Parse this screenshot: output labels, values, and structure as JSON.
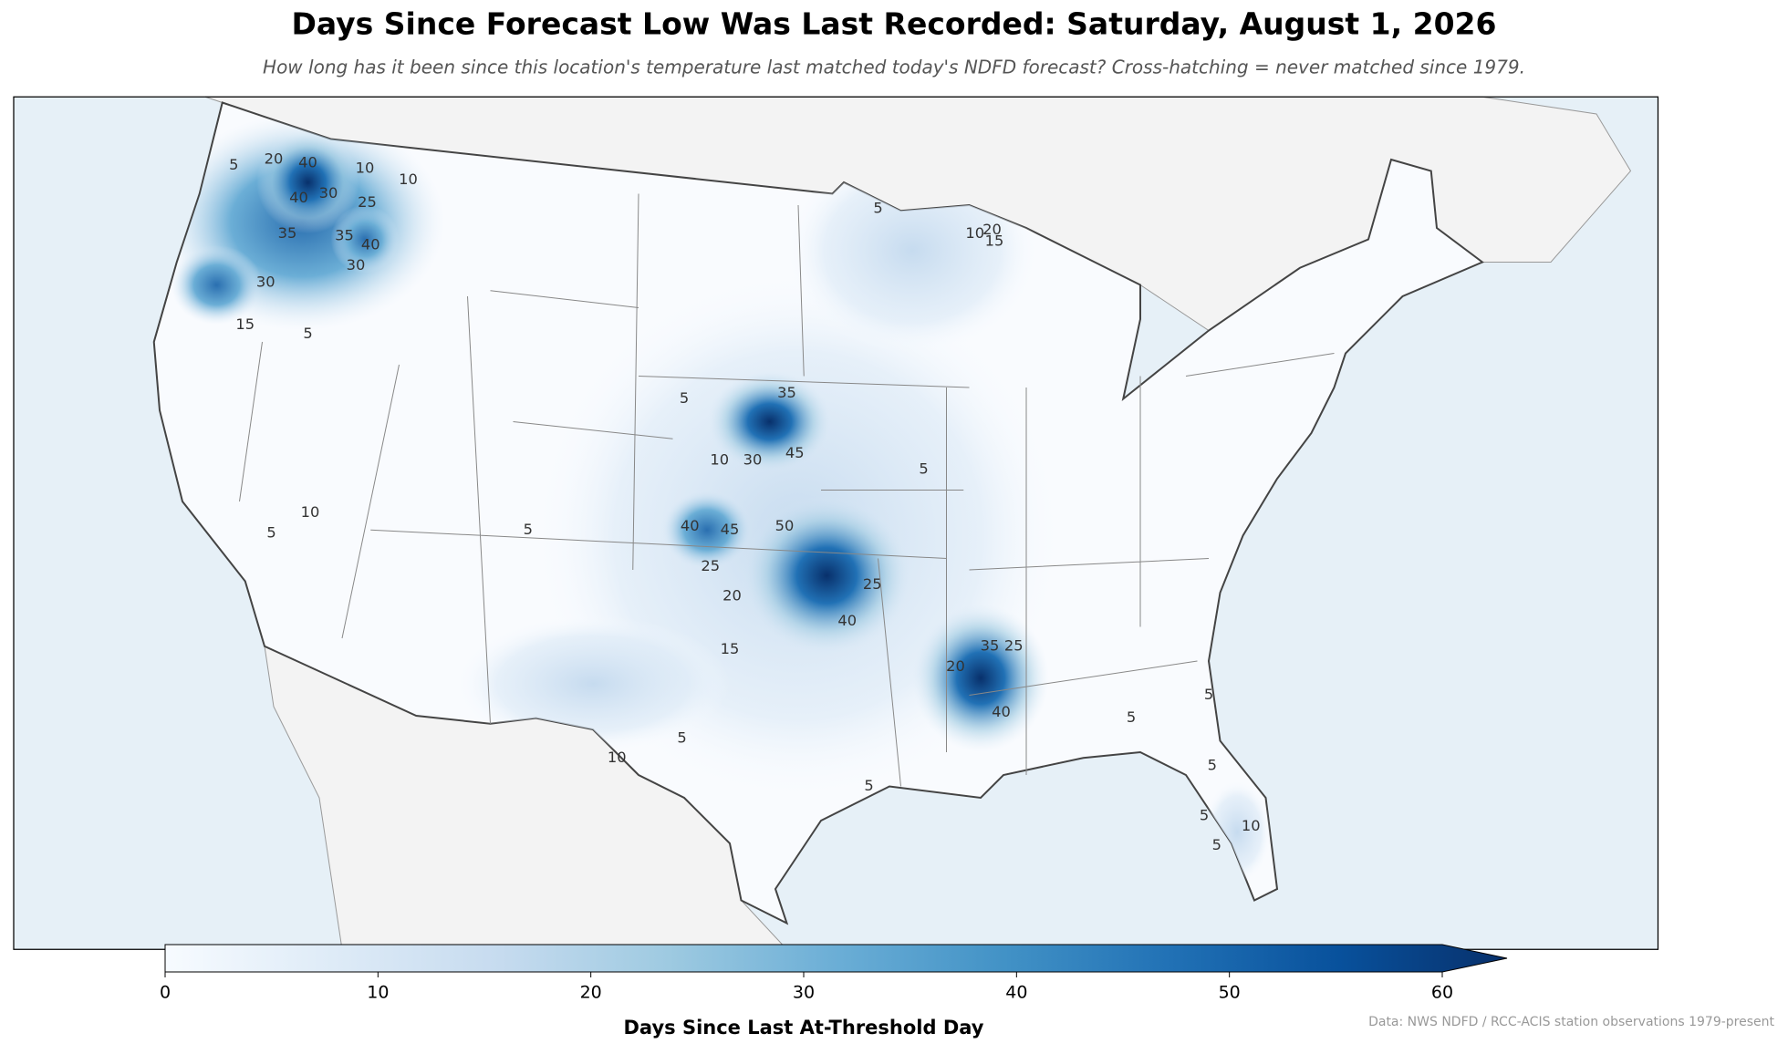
{
  "header": {
    "title": "Days Since Forecast Low Was Last Recorded: Saturday, August 1, 2026",
    "subtitle": "How long has it been since this location's temperature last matched today's NDFD forecast? Cross-hatching = never matched since 1979."
  },
  "map": {
    "contour_labels": [
      5,
      20,
      40,
      10,
      10,
      40,
      30,
      25,
      35,
      35,
      40,
      30,
      30,
      15,
      5,
      10,
      5,
      5,
      35,
      10,
      30,
      45,
      40,
      45,
      50,
      25,
      20,
      40,
      25,
      15,
      5,
      10,
      5,
      5,
      5,
      35,
      25,
      20,
      40,
      5,
      5,
      5,
      5,
      5,
      10,
      20,
      10,
      15,
      5
    ]
  },
  "colorbar": {
    "label": "Days Since Last At-Threshold Day",
    "range": [
      0,
      60
    ],
    "ticks": [
      0,
      10,
      20,
      30,
      40,
      50,
      60
    ],
    "colormap": [
      "#f7fbff",
      "#deebf7",
      "#c6dbef",
      "#9ecae1",
      "#6baed6",
      "#4292c6",
      "#2171b5",
      "#08519c",
      "#08306b"
    ],
    "extend": "max"
  },
  "footer": {
    "source": "Data: NWS NDFD / RCC-ACIS station observations 1979-present"
  }
}
